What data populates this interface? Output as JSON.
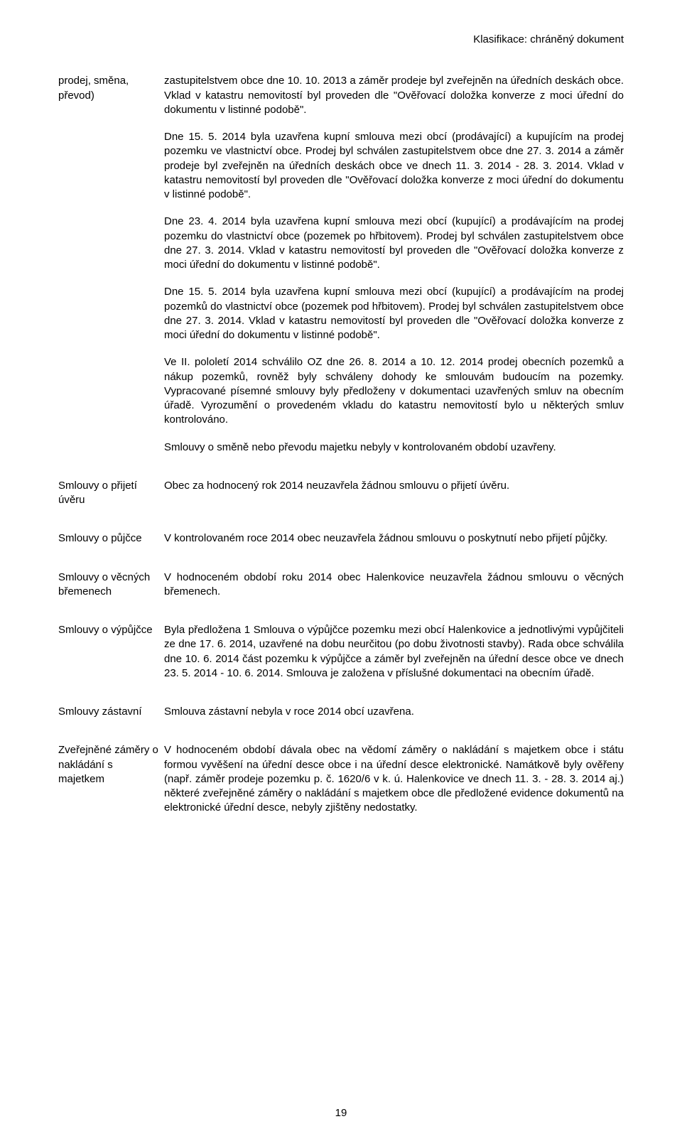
{
  "classification": "Klasifikace: chráněný dokument",
  "rows": [
    {
      "label": "prodej, směna, převod)",
      "paragraphs": [
        "zastupitelstvem obce dne 10. 10. 2013 a záměr prodeje byl zveřejněn na úředních deskách obce. Vklad v katastru nemovitostí byl proveden dle \"Ověřovací doložka konverze z moci úřední do dokumentu v listinné podobě\".",
        "Dne 15. 5. 2014 byla uzavřena kupní smlouva mezi obcí (prodávající) a kupujícím na prodej pozemku ve vlastnictví obce. Prodej byl schválen zastupitelstvem obce dne 27. 3. 2014 a záměr prodeje byl zveřejněn na úředních deskách obce ve dnech 11. 3. 2014 - 28. 3. 2014. Vklad v katastru nemovitostí byl proveden dle \"Ověřovací doložka konverze z moci úřední do dokumentu v listinné podobě\".",
        "Dne 23. 4. 2014 byla uzavřena kupní smlouva mezi obcí (kupující) a prodávajícím na prodej pozemku do vlastnictví obce (pozemek po hřbitovem). Prodej byl schválen zastupitelstvem obce dne 27. 3. 2014. Vklad v katastru nemovitostí byl proveden dle \"Ověřovací doložka konverze z moci úřední do dokumentu v listinné podobě\".",
        "Dne 15. 5. 2014 byla uzavřena kupní smlouva mezi obcí (kupující) a prodávajícím na prodej pozemků do vlastnictví obce (pozemek pod hřbitovem). Prodej byl schválen zastupitelstvem obce dne 27. 3. 2014. Vklad v katastru nemovitostí byl proveden dle \"Ověřovací doložka konverze z moci úřední do dokumentu v listinné podobě\".",
        "Ve II. pololetí 2014 schválilo OZ dne 26. 8. 2014 a 10. 12. 2014 prodej obecních pozemků a nákup pozemků, rovněž byly schváleny dohody ke smlouvám budoucím na pozemky. Vypracované písemné smlouvy byly předloženy v dokumentaci uzavřených smluv na obecním úřadě. Vyrozumění o provedeném vkladu do katastru nemovitostí bylo u některých smluv kontrolováno.",
        "Smlouvy o směně nebo převodu majetku nebyly v kontrolovaném období uzavřeny."
      ]
    },
    {
      "label": "Smlouvy o přijetí úvěru",
      "paragraphs": [
        "Obec za hodnocený rok 2014 neuzavřela žádnou smlouvu o přijetí úvěru."
      ]
    },
    {
      "label": "Smlouvy o půjčce",
      "paragraphs": [
        "V kontrolovaném roce 2014 obec neuzavřela žádnou smlouvu o poskytnutí nebo přijetí půjčky."
      ]
    },
    {
      "label": "Smlouvy o věcných břemenech",
      "paragraphs": [
        "V hodnoceném období roku 2014 obec Halenkovice neuzavřela žádnou smlouvu o věcných břemenech."
      ]
    },
    {
      "label": "Smlouvy o výpůjčce",
      "paragraphs": [
        "Byla předložena 1 Smlouva o výpůjčce pozemku mezi obcí Halenkovice a jednotlivými vypůjčiteli ze dne 17. 6. 2014, uzavřené na dobu neurčitou (po dobu životnosti stavby). Rada obce schválila dne 10. 6. 2014 část pozemku k výpůjčce a záměr byl zveřejněn na úřední desce obce ve dnech 23. 5. 2014 - 10. 6. 2014. Smlouva je založena v příslušné dokumentaci na obecním úřadě."
      ]
    },
    {
      "label": "Smlouvy zástavní",
      "paragraphs": [
        "Smlouva zástavní nebyla v roce 2014 obcí uzavřena."
      ]
    },
    {
      "label": "Zveřejněné záměry o nakládání s majetkem",
      "paragraphs": [
        "V hodnoceném období dávala obec na vědomí záměry o nakládání s majetkem obce i státu formou vyvěšení na úřední desce obce i na úřední desce elektronické. Namátkově byly ověřeny (např. záměr prodeje pozemku p. č. 1620/6 v k. ú. Halenkovice ve dnech 11. 3. - 28. 3. 2014 aj.) některé zveřejněné záměry o nakládání s majetkem obce dle předložené evidence dokumentů na elektronické úřední desce, nebyly zjištěny nedostatky."
      ]
    }
  ],
  "pageNumber": "19"
}
